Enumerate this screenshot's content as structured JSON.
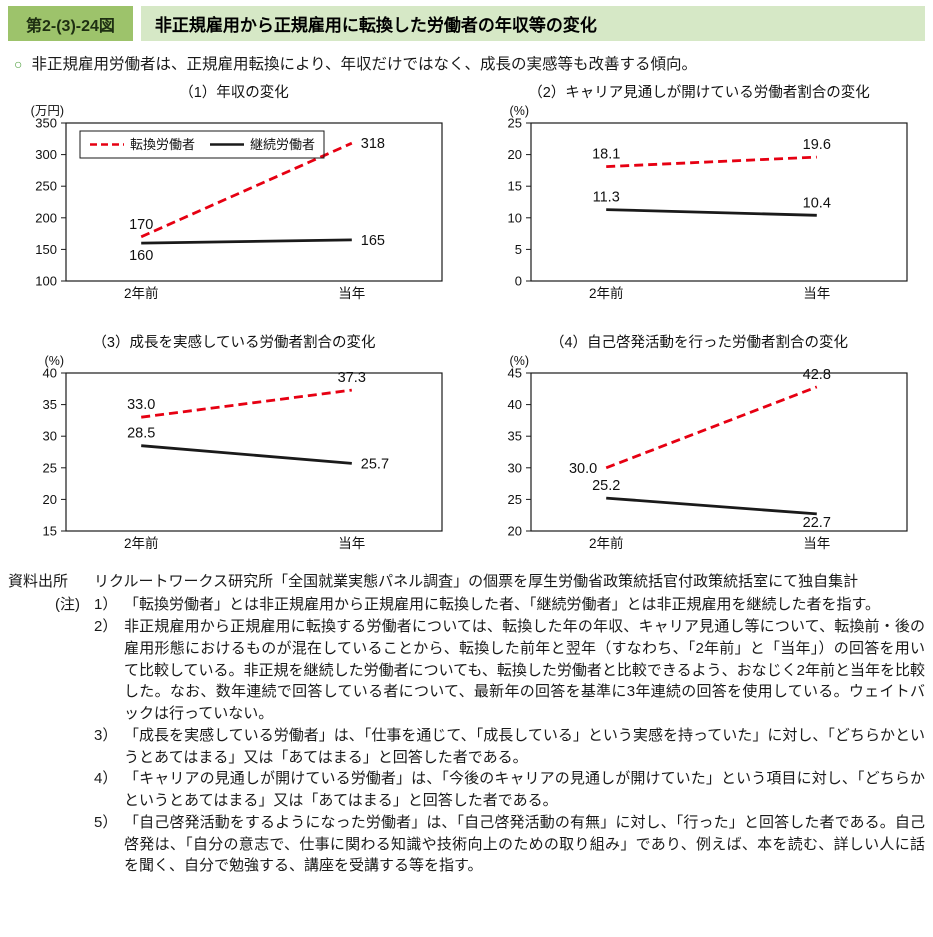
{
  "header": {
    "figure_label": "第2-(3)-24図",
    "title": "非正規雇用から正規雇用に転換した労働者の年収等の変化"
  },
  "lead": {
    "bullet": "○",
    "text": "非正規雇用労働者は、正規雇用転換により、年収だけではなく、成長の実感等も改善する傾向。"
  },
  "style": {
    "label_bg": "#9dc36b",
    "label_text": "#1e2f12",
    "title_bg": "#d6e8c6",
    "bullet_color": "#4d9e3c",
    "line_red": "#e60012",
    "line_black": "#1a1a1a",
    "axis_color": "#1a1a1a"
  },
  "chart_data": [
    {
      "type": "line",
      "title": "（1）年収の変化",
      "unit": "(万円)",
      "categories": [
        "2年前",
        "当年"
      ],
      "ylim": [
        100,
        350
      ],
      "ytick_step": 50,
      "grid": false,
      "legend": {
        "show": true,
        "position": "inside-top-left"
      },
      "series": [
        {
          "name": "転換労働者",
          "style": "dashed-red",
          "values": [
            170,
            318
          ],
          "value_labels": [
            "170",
            "318"
          ],
          "label_positions": [
            "above",
            "right"
          ]
        },
        {
          "name": "継続労働者",
          "style": "solid-black",
          "values": [
            160,
            165
          ],
          "value_labels": [
            "160",
            "165"
          ],
          "label_positions": [
            "below",
            "right"
          ]
        }
      ]
    },
    {
      "type": "line",
      "title": "（2）キャリア見通しが開けている労働者割合の変化",
      "unit": "(%)",
      "categories": [
        "2年前",
        "当年"
      ],
      "ylim": [
        0,
        25
      ],
      "ytick_step": 5,
      "grid": false,
      "legend": {
        "show": false
      },
      "series": [
        {
          "name": "転換労働者",
          "style": "dashed-red",
          "values": [
            18.1,
            19.6
          ],
          "value_labels": [
            "18.1",
            "19.6"
          ],
          "label_positions": [
            "above",
            "above"
          ]
        },
        {
          "name": "継続労働者",
          "style": "solid-black",
          "values": [
            11.3,
            10.4
          ],
          "value_labels": [
            "11.3",
            "10.4"
          ],
          "label_positions": [
            "above",
            "above"
          ]
        }
      ]
    },
    {
      "type": "line",
      "title": "（3）成長を実感している労働者割合の変化",
      "unit": "(%)",
      "categories": [
        "2年前",
        "当年"
      ],
      "ylim": [
        15,
        40
      ],
      "ytick_step": 5,
      "grid": false,
      "legend": {
        "show": false
      },
      "series": [
        {
          "name": "転換労働者",
          "style": "dashed-red",
          "values": [
            33.0,
            37.3
          ],
          "value_labels": [
            "33.0",
            "37.3"
          ],
          "label_positions": [
            "above",
            "above"
          ]
        },
        {
          "name": "継続労働者",
          "style": "solid-black",
          "values": [
            28.5,
            25.7
          ],
          "value_labels": [
            "28.5",
            "25.7"
          ],
          "label_positions": [
            "above",
            "right"
          ]
        }
      ]
    },
    {
      "type": "line",
      "title": "（4）自己啓発活動を行った労働者割合の変化",
      "unit": "(%)",
      "categories": [
        "2年前",
        "当年"
      ],
      "ylim": [
        20,
        45
      ],
      "ytick_step": 5,
      "grid": false,
      "legend": {
        "show": false
      },
      "series": [
        {
          "name": "転換労働者",
          "style": "dashed-red",
          "values": [
            30.0,
            42.8
          ],
          "value_labels": [
            "30.0",
            "42.8"
          ],
          "label_positions": [
            "left",
            "above"
          ]
        },
        {
          "name": "継続労働者",
          "style": "solid-black",
          "values": [
            25.2,
            22.7
          ],
          "value_labels": [
            "25.2",
            "22.7"
          ],
          "label_positions": [
            "above",
            "below"
          ]
        }
      ]
    }
  ],
  "source": {
    "label": "資料出所",
    "text": "リクルートワークス研究所「全国就業実態パネル調査」の個票を厚生労働省政策統括官付政策統括室にて独自集計"
  },
  "notes": {
    "label": "(注)",
    "items": [
      {
        "num": "1）",
        "text": "「転換労働者」とは非正規雇用から正規雇用に転換した者、「継続労働者」とは非正規雇用を継続した者を指す。"
      },
      {
        "num": "2）",
        "text": "非正規雇用から正規雇用に転換する労働者については、転換した年の年収、キャリア見通し等について、転換前・後の雇用形態におけるものが混在していることから、転換した前年と翌年（すなわち、「2年前」と「当年」）の回答を用いて比較している。非正規を継続した労働者についても、転換した労働者と比較できるよう、おなじく2年前と当年を比較した。なお、数年連続で回答している者について、最新年の回答を基準に3年連続の回答を使用している。ウェイトバックは行っていない。"
      },
      {
        "num": "3）",
        "text": "「成長を実感している労働者」は、「仕事を通じて、「成長している」という実感を持っていた」に対し、「どちらかというとあてはまる」又は「あてはまる」と回答した者である。"
      },
      {
        "num": "4）",
        "text": "「キャリアの見通しが開けている労働者」は、「今後のキャリアの見通しが開けていた」という項目に対し、「どちらかというとあてはまる」又は「あてはまる」と回答した者である。"
      },
      {
        "num": "5）",
        "text": "「自己啓発活動をするようになった労働者」は、「自己啓発活動の有無」に対し、「行った」と回答した者である。自己啓発は、「自分の意志で、仕事に関わる知識や技術向上のための取り組み」であり、例えば、本を読む、詳しい人に話を聞く、自分で勉強する、講座を受講する等を指す。"
      }
    ]
  }
}
